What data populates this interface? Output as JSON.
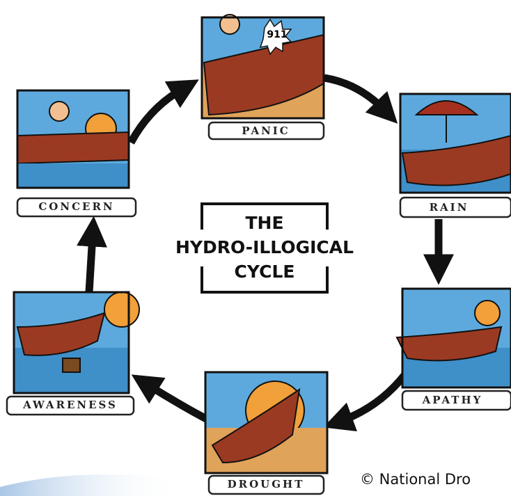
{
  "diagram": {
    "title_lines": [
      "THE",
      "HYDRO-ILLOGICAL",
      "CYCLE"
    ],
    "nodes": [
      {
        "label": "PANIC",
        "sign": "911"
      },
      {
        "label": "RAIN"
      },
      {
        "label": "APATHY"
      },
      {
        "label": "DROUGHT"
      },
      {
        "label": "AWARENESS"
      },
      {
        "label": "CONCERN"
      }
    ],
    "credit": "© National Dro"
  }
}
